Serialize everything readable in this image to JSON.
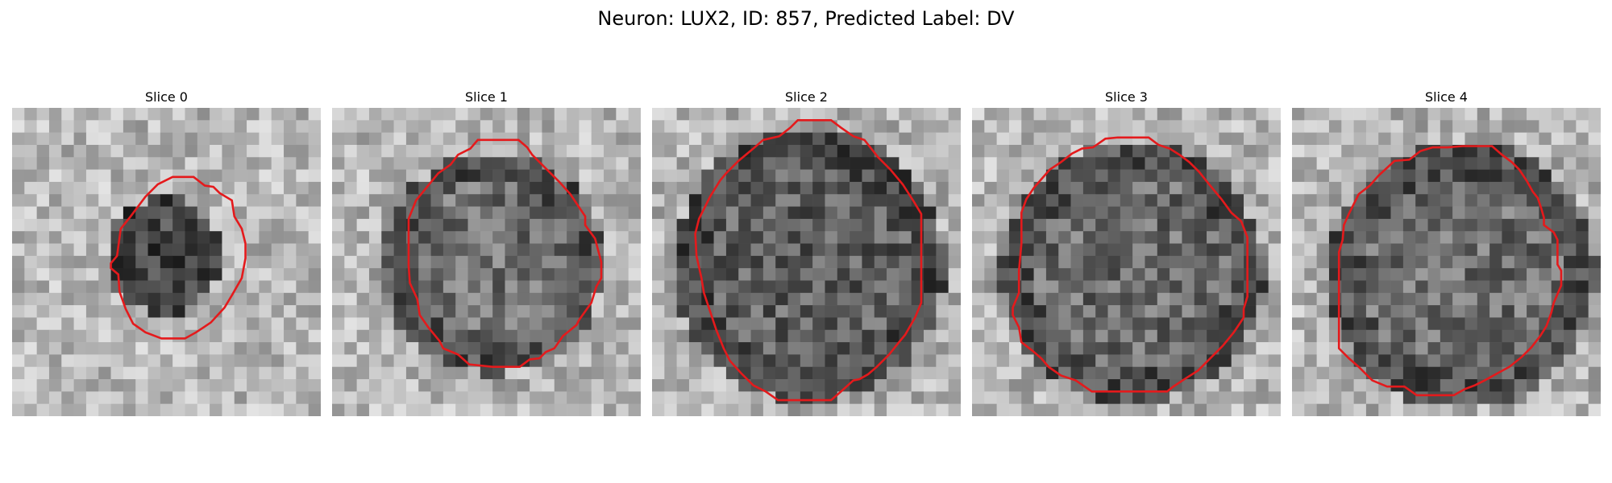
{
  "figure": {
    "title": "Neuron: LUX2, ID: 857, Predicted Label: DV"
  },
  "colors": {
    "contour": "#e41a1c",
    "background": "#ffffff"
  },
  "colormap": "gray",
  "panels": [
    {
      "title": "Slice 0",
      "center": [
        12.2,
        12.0
      ],
      "radius": 4.1,
      "darkness": 0.62,
      "contour": [
        [
          8.0,
          12.6
        ],
        [
          8.5,
          12.0
        ],
        [
          8.8,
          9.8
        ],
        [
          9.6,
          8.8
        ],
        [
          10.8,
          7.2
        ],
        [
          11.8,
          6.2
        ],
        [
          13.0,
          5.6
        ],
        [
          14.7,
          5.6
        ],
        [
          15.6,
          6.3
        ],
        [
          16.3,
          6.4
        ],
        [
          16.8,
          6.9
        ],
        [
          17.8,
          7.5
        ],
        [
          18.0,
          8.8
        ],
        [
          18.6,
          9.8
        ],
        [
          18.9,
          11.0
        ],
        [
          18.9,
          12.2
        ],
        [
          18.6,
          13.8
        ],
        [
          17.8,
          15.2
        ],
        [
          17.2,
          16.2
        ],
        [
          16.1,
          17.4
        ],
        [
          14.9,
          18.2
        ],
        [
          14.0,
          18.7
        ],
        [
          12.1,
          18.7
        ],
        [
          10.8,
          18.2
        ],
        [
          9.8,
          17.5
        ],
        [
          9.2,
          16.3
        ],
        [
          8.7,
          14.9
        ],
        [
          8.6,
          13.5
        ],
        [
          8.0,
          13.0
        ]
      ]
    },
    {
      "title": "Slice 1",
      "center": [
        13.0,
        12.6
      ],
      "radius": 7.8,
      "darkness": 0.32,
      "contour": [
        [
          6.2,
          9.0
        ],
        [
          6.8,
          7.5
        ],
        [
          8.6,
          5.3
        ],
        [
          9.6,
          4.6
        ],
        [
          10.2,
          3.8
        ],
        [
          11.2,
          3.3
        ],
        [
          11.8,
          2.6
        ],
        [
          15.1,
          2.6
        ],
        [
          15.8,
          3.2
        ],
        [
          16.2,
          3.8
        ],
        [
          17.2,
          4.8
        ],
        [
          18.4,
          6.0
        ],
        [
          19.3,
          7.0
        ],
        [
          20.5,
          8.8
        ],
        [
          20.5,
          9.5
        ],
        [
          21.3,
          10.6
        ],
        [
          21.8,
          12.5
        ],
        [
          21.8,
          13.8
        ],
        [
          21.4,
          14.5
        ],
        [
          21.0,
          15.8
        ],
        [
          20.0,
          17.2
        ],
        [
          19.8,
          17.6
        ],
        [
          18.7,
          18.5
        ],
        [
          18.0,
          19.5
        ],
        [
          17.3,
          19.8
        ],
        [
          16.8,
          20.3
        ],
        [
          16.0,
          20.4
        ],
        [
          15.2,
          21.0
        ],
        [
          13.0,
          21.0
        ],
        [
          11.1,
          20.8
        ],
        [
          10.2,
          20.0
        ],
        [
          9.0,
          19.5
        ],
        [
          8.7,
          18.9
        ],
        [
          7.8,
          17.8
        ],
        [
          7.1,
          16.8
        ],
        [
          6.9,
          15.5
        ],
        [
          6.3,
          14.2
        ],
        [
          6.2,
          12.8
        ]
      ]
    },
    {
      "title": "Slice 2",
      "center": [
        12.7,
        12.8
      ],
      "radius": 9.6,
      "darkness": 0.45,
      "contour": [
        [
          3.5,
          10.2
        ],
        [
          3.8,
          9.0
        ],
        [
          4.3,
          8.0
        ],
        [
          4.7,
          7.2
        ],
        [
          5.5,
          5.9
        ],
        [
          6.0,
          5.3
        ],
        [
          7.0,
          4.3
        ],
        [
          8.2,
          3.3
        ],
        [
          9.0,
          2.6
        ],
        [
          10.3,
          2.3
        ],
        [
          11.2,
          1.6
        ],
        [
          11.8,
          1.0
        ],
        [
          14.5,
          1.0
        ],
        [
          15.3,
          1.6
        ],
        [
          16.3,
          2.3
        ],
        [
          17.2,
          2.6
        ],
        [
          18.3,
          4.0
        ],
        [
          19.3,
          5.0
        ],
        [
          20.3,
          6.2
        ],
        [
          21.2,
          7.6
        ],
        [
          21.8,
          8.6
        ],
        [
          21.8,
          12.0
        ],
        [
          21.8,
          14.2
        ],
        [
          21.8,
          15.8
        ],
        [
          21.3,
          17.0
        ],
        [
          20.5,
          18.4
        ],
        [
          20.0,
          19.0
        ],
        [
          19.2,
          20.0
        ],
        [
          18.2,
          21.0
        ],
        [
          17.5,
          21.6
        ],
        [
          16.8,
          22.0
        ],
        [
          16.3,
          22.1
        ],
        [
          15.3,
          23.0
        ],
        [
          14.5,
          23.7
        ],
        [
          12.4,
          23.7
        ],
        [
          10.2,
          23.7
        ],
        [
          9.2,
          23.0
        ],
        [
          8.2,
          22.5
        ],
        [
          7.2,
          21.5
        ],
        [
          6.3,
          20.5
        ],
        [
          5.8,
          19.5
        ],
        [
          5.2,
          18.0
        ],
        [
          4.8,
          16.8
        ],
        [
          4.2,
          15.0
        ],
        [
          4.0,
          13.8
        ],
        [
          3.6,
          12.0
        ]
      ]
    },
    {
      "title": "Slice 3",
      "center": [
        13.0,
        13.3
      ],
      "radius": 9.2,
      "darkness": 0.36,
      "contour": [
        [
          4.0,
          8.5
        ],
        [
          4.4,
          7.4
        ],
        [
          5.0,
          6.5
        ],
        [
          5.6,
          5.8
        ],
        [
          6.3,
          5.0
        ],
        [
          7.2,
          4.4
        ],
        [
          8.1,
          3.7
        ],
        [
          8.9,
          3.3
        ],
        [
          9.8,
          3.2
        ],
        [
          10.8,
          2.5
        ],
        [
          11.8,
          2.4
        ],
        [
          13.2,
          2.4
        ],
        [
          14.3,
          2.4
        ],
        [
          15.1,
          3.0
        ],
        [
          16.0,
          3.3
        ],
        [
          16.8,
          3.8
        ],
        [
          17.6,
          4.4
        ],
        [
          18.4,
          5.2
        ],
        [
          19.2,
          6.2
        ],
        [
          20.2,
          7.4
        ],
        [
          21.0,
          8.5
        ],
        [
          21.8,
          9.2
        ],
        [
          22.3,
          10.5
        ],
        [
          22.3,
          12.0
        ],
        [
          22.3,
          13.6
        ],
        [
          22.3,
          15.3
        ],
        [
          22.0,
          16.3
        ],
        [
          22.0,
          17.0
        ],
        [
          21.2,
          18.2
        ],
        [
          20.3,
          19.3
        ],
        [
          19.8,
          19.8
        ],
        [
          18.8,
          20.8
        ],
        [
          18.3,
          21.3
        ],
        [
          17.2,
          22.0
        ],
        [
          16.3,
          22.6
        ],
        [
          15.8,
          23.0
        ],
        [
          14.3,
          23.0
        ],
        [
          13.0,
          23.0
        ],
        [
          11.8,
          23.0
        ],
        [
          10.6,
          23.0
        ],
        [
          9.7,
          23.0
        ],
        [
          8.4,
          22.1
        ],
        [
          7.2,
          21.7
        ],
        [
          6.2,
          21.0
        ],
        [
          5.6,
          20.3
        ],
        [
          4.9,
          19.7
        ],
        [
          4.0,
          19.0
        ],
        [
          3.8,
          17.8
        ],
        [
          3.3,
          16.8
        ],
        [
          3.3,
          16.2
        ],
        [
          3.8,
          15.0
        ],
        [
          3.8,
          13.2
        ],
        [
          4.0,
          11.0
        ]
      ]
    },
    {
      "title": "Slice 4",
      "center": [
        13.8,
        13.6
      ],
      "radius": 9.4,
      "darkness": 0.34,
      "contour": [
        [
          3.8,
          11.7
        ],
        [
          4.1,
          10.7
        ],
        [
          4.2,
          9.5
        ],
        [
          4.6,
          8.6
        ],
        [
          5.4,
          7.0
        ],
        [
          6.3,
          6.3
        ],
        [
          7.0,
          5.5
        ],
        [
          8.3,
          4.3
        ],
        [
          9.5,
          4.2
        ],
        [
          10.4,
          3.5
        ],
        [
          11.4,
          3.2
        ],
        [
          12.6,
          3.2
        ],
        [
          13.8,
          3.1
        ],
        [
          15.0,
          3.1
        ],
        [
          16.2,
          3.1
        ],
        [
          17.0,
          3.8
        ],
        [
          17.8,
          4.4
        ],
        [
          18.4,
          5.0
        ],
        [
          19.0,
          5.9
        ],
        [
          19.5,
          6.8
        ],
        [
          19.9,
          7.3
        ],
        [
          20.2,
          8.2
        ],
        [
          20.4,
          8.9
        ],
        [
          20.4,
          9.5
        ],
        [
          21.2,
          10.1
        ],
        [
          21.5,
          10.7
        ],
        [
          21.5,
          11.7
        ],
        [
          21.5,
          12.7
        ],
        [
          21.8,
          13.2
        ],
        [
          21.8,
          14.4
        ],
        [
          21.2,
          15.8
        ],
        [
          21.0,
          16.6
        ],
        [
          20.6,
          17.7
        ],
        [
          20.1,
          18.5
        ],
        [
          19.4,
          19.4
        ],
        [
          18.6,
          20.2
        ],
        [
          17.6,
          21.0
        ],
        [
          16.5,
          21.6
        ],
        [
          15.6,
          22.1
        ],
        [
          14.8,
          22.5
        ],
        [
          14.0,
          22.8
        ],
        [
          13.1,
          23.3
        ],
        [
          12.0,
          23.3
        ],
        [
          11.1,
          23.3
        ],
        [
          10.1,
          23.3
        ],
        [
          9.1,
          22.6
        ],
        [
          7.7,
          22.6
        ],
        [
          6.5,
          22.1
        ],
        [
          5.4,
          21.0
        ],
        [
          4.6,
          20.3
        ],
        [
          3.8,
          19.5
        ],
        [
          3.8,
          17.8
        ],
        [
          3.8,
          16.3
        ],
        [
          3.8,
          14.6
        ],
        [
          3.8,
          13.2
        ]
      ]
    }
  ]
}
